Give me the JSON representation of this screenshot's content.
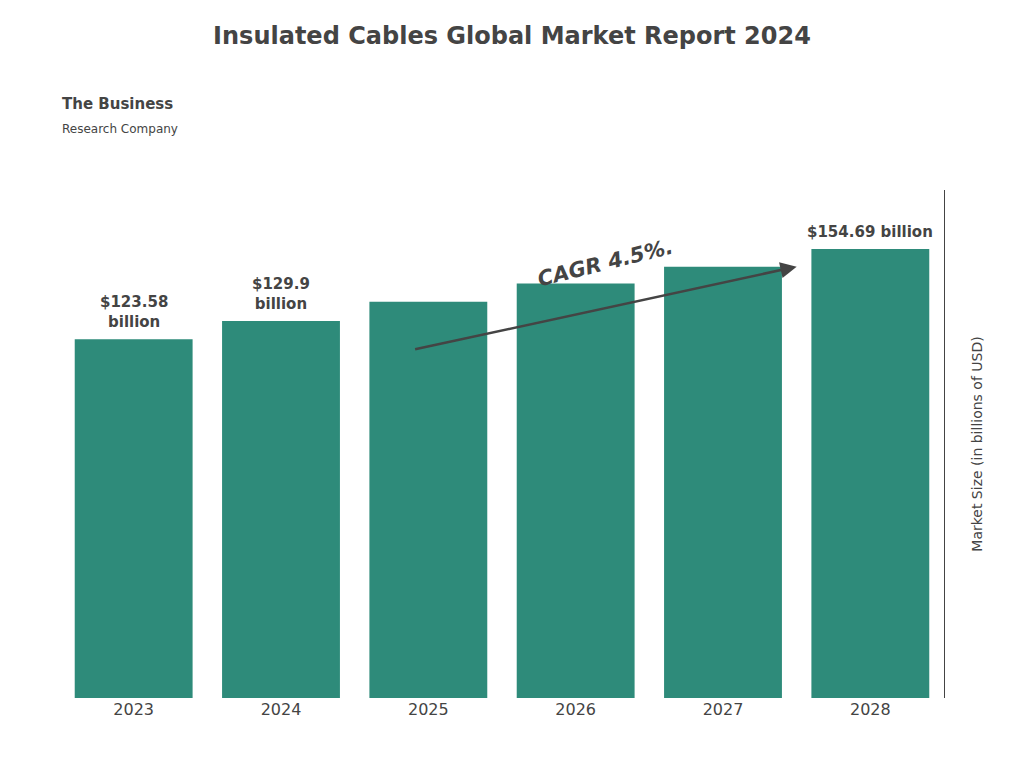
{
  "chart_data": {
    "type": "bar",
    "title": "Insulated Cables Global Market Report 2024",
    "categories": [
      "2023",
      "2024",
      "2025",
      "2026",
      "2027",
      "2028"
    ],
    "values": [
      123.58,
      129.9,
      136.5,
      142.8,
      148.6,
      154.69
    ],
    "color": "#2e8b7a",
    "ylabel": "Market Size (in billions of USD)",
    "ylim": [
      0,
      175
    ],
    "yticks": [],
    "tick_labels": "x",
    "grid": false,
    "annotations": [
      {
        "text": "$123.58\nbillion",
        "category": "2023"
      },
      {
        "text": "$129.9\nbillion",
        "category": "2024"
      },
      {
        "text": "$154.69 billion",
        "category": "2028"
      },
      {
        "text": "CAGR 4.5%.",
        "arrow": true
      },
      {
        "text": "The Business"
      },
      {
        "text": "Research Company"
      }
    ]
  }
}
